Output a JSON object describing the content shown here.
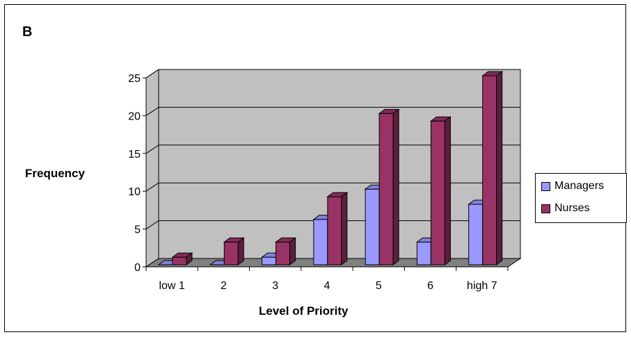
{
  "chart_data": {
    "type": "bar",
    "panel_label": "B",
    "title": "",
    "xlabel": "Level of Priority",
    "ylabel": "Frequency",
    "categories": [
      "low 1",
      "2",
      "3",
      "4",
      "5",
      "6",
      "high 7"
    ],
    "series": [
      {
        "name": "Managers",
        "values": [
          0,
          0,
          1,
          6,
          10,
          3,
          8
        ],
        "color": "#9999ff"
      },
      {
        "name": "Nurses",
        "values": [
          1,
          3,
          3,
          9,
          20,
          19,
          25
        ],
        "color": "#993366"
      }
    ],
    "ylim": [
      0,
      25
    ],
    "yticks": [
      0,
      5,
      10,
      15,
      20,
      25
    ],
    "grid": true,
    "legend_position": "right",
    "plot_area_color": "#c0c0c0",
    "floor_color": "#808080"
  }
}
